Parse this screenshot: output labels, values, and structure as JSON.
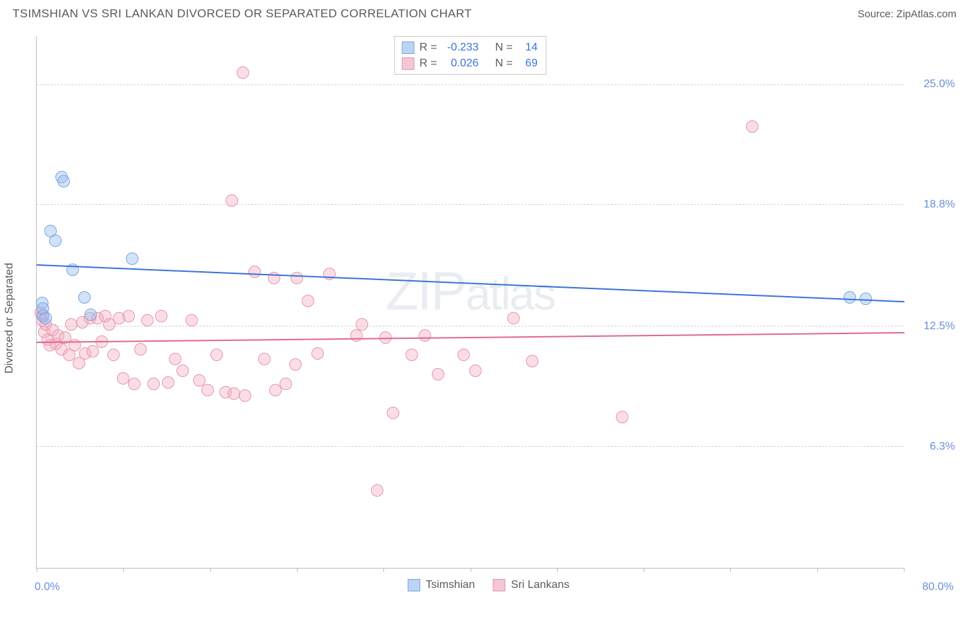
{
  "header": {
    "title": "TSIMSHIAN VS SRI LANKAN DIVORCED OR SEPARATED CORRELATION CHART",
    "source_prefix": "Source: ",
    "source_name": "ZipAtlas.com"
  },
  "chart": {
    "type": "scatter",
    "ylabel": "Divorced or Separated",
    "watermark_a": "ZIP",
    "watermark_b": "atlas",
    "background_color": "#ffffff",
    "grid_color": "#d4d4d4",
    "axis_color": "#bfbfbf",
    "label_color": "#6a8fd8",
    "text_color": "#5a5a5a",
    "xlim": [
      0,
      80
    ],
    "ylim": [
      0,
      27.5
    ],
    "x_ticks": [
      0,
      8,
      16,
      24,
      32,
      40,
      48,
      56,
      64,
      72,
      80
    ],
    "y_gridlines": [
      6.3,
      12.5,
      18.8,
      25.0
    ],
    "y_tick_labels": [
      "6.3%",
      "12.5%",
      "18.8%",
      "25.0%"
    ],
    "x_axis_min_label": "0.0%",
    "x_axis_max_label": "80.0%",
    "marker_radius": 9,
    "series": [
      {
        "name": "Tsimshian",
        "fill": "rgba(155,190,240,0.45)",
        "stroke": "#7aa6e0",
        "swatch_fill": "#bcd3f2",
        "swatch_stroke": "#7aa6e0",
        "line_color": "#3a74d8",
        "R": "-0.233",
        "N": "14",
        "trend": {
          "y_at_xmin": 15.7,
          "y_at_xmax": 13.8
        },
        "points": [
          [
            0.5,
            13.7
          ],
          [
            0.6,
            13.0
          ],
          [
            0.6,
            13.4
          ],
          [
            0.8,
            12.9
          ],
          [
            1.3,
            17.4
          ],
          [
            1.7,
            16.9
          ],
          [
            2.3,
            20.2
          ],
          [
            2.5,
            20.0
          ],
          [
            3.3,
            15.4
          ],
          [
            4.4,
            14.0
          ],
          [
            5.0,
            13.1
          ],
          [
            8.8,
            16.0
          ],
          [
            75.0,
            14.0
          ],
          [
            76.5,
            13.9
          ]
        ]
      },
      {
        "name": "Sri Lankans",
        "fill": "rgba(245,170,190,0.40)",
        "stroke": "#e598ae",
        "swatch_fill": "#f5c6d3",
        "swatch_stroke": "#e598ae",
        "line_color": "#e06a8a",
        "R": "0.026",
        "N": "69",
        "trend": {
          "y_at_xmin": 11.7,
          "y_at_xmax": 12.2
        },
        "points": [
          [
            0.4,
            13.2
          ],
          [
            0.5,
            12.8
          ],
          [
            0.6,
            13.1
          ],
          [
            0.7,
            12.2
          ],
          [
            0.8,
            12.6
          ],
          [
            1.0,
            11.8
          ],
          [
            1.2,
            11.5
          ],
          [
            1.5,
            12.3
          ],
          [
            1.8,
            11.6
          ],
          [
            2.0,
            12.0
          ],
          [
            2.3,
            11.3
          ],
          [
            2.6,
            11.9
          ],
          [
            3.0,
            11.0
          ],
          [
            3.2,
            12.6
          ],
          [
            3.5,
            11.5
          ],
          [
            3.9,
            10.6
          ],
          [
            4.2,
            12.7
          ],
          [
            4.5,
            11.1
          ],
          [
            4.9,
            12.9
          ],
          [
            5.2,
            11.2
          ],
          [
            5.6,
            12.9
          ],
          [
            6.0,
            11.7
          ],
          [
            6.3,
            13.0
          ],
          [
            6.7,
            12.6
          ],
          [
            7.1,
            11.0
          ],
          [
            7.6,
            12.9
          ],
          [
            8.0,
            9.8
          ],
          [
            8.5,
            13.0
          ],
          [
            9.0,
            9.5
          ],
          [
            9.6,
            11.3
          ],
          [
            10.2,
            12.8
          ],
          [
            10.8,
            9.5
          ],
          [
            11.5,
            13.0
          ],
          [
            12.1,
            9.6
          ],
          [
            12.8,
            10.8
          ],
          [
            13.5,
            10.2
          ],
          [
            14.3,
            12.8
          ],
          [
            15.0,
            9.7
          ],
          [
            15.8,
            9.2
          ],
          [
            16.6,
            11.0
          ],
          [
            17.4,
            9.1
          ],
          [
            18.0,
            19.0
          ],
          [
            18.2,
            9.0
          ],
          [
            19.0,
            25.6
          ],
          [
            19.2,
            8.9
          ],
          [
            20.1,
            15.3
          ],
          [
            21.0,
            10.8
          ],
          [
            21.9,
            15.0
          ],
          [
            22.0,
            9.2
          ],
          [
            23.0,
            9.5
          ],
          [
            23.9,
            10.5
          ],
          [
            24.0,
            15.0
          ],
          [
            25.0,
            13.8
          ],
          [
            25.9,
            11.1
          ],
          [
            27.0,
            15.2
          ],
          [
            29.5,
            12.0
          ],
          [
            30.0,
            12.6
          ],
          [
            31.4,
            4.0
          ],
          [
            32.2,
            11.9
          ],
          [
            32.9,
            8.0
          ],
          [
            34.6,
            11.0
          ],
          [
            35.8,
            12.0
          ],
          [
            37.0,
            10.0
          ],
          [
            39.4,
            11.0
          ],
          [
            40.5,
            10.2
          ],
          [
            44.0,
            12.9
          ],
          [
            45.7,
            10.7
          ],
          [
            54.0,
            7.8
          ],
          [
            66.0,
            22.8
          ]
        ]
      }
    ],
    "legend_top": {
      "R_label": "R =",
      "N_label": "N ="
    },
    "legend_bottom_labels": [
      "Tsimshian",
      "Sri Lankans"
    ]
  }
}
